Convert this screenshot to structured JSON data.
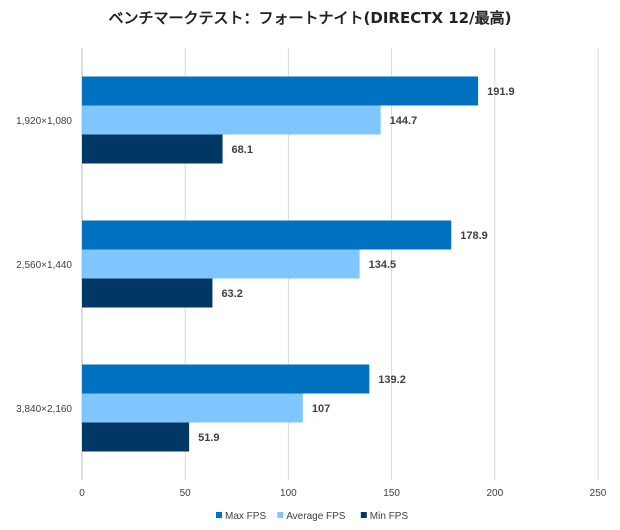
{
  "chart_data": {
    "type": "bar",
    "orientation": "horizontal",
    "title": "ベンチマークテスト：フォートナイト(DIRECTX 12/最高)",
    "categories": [
      "1,920×1,080",
      "2,560×1,440",
      "3,840×2,160"
    ],
    "series": [
      {
        "name": "Max FPS",
        "color": "#0070c0",
        "values": [
          191.9,
          178.9,
          139.2
        ],
        "labels": [
          "191.9",
          "178.9",
          "139.2"
        ]
      },
      {
        "name": "Average FPS",
        "color": "#7fc6ff",
        "values": [
          144.7,
          134.5,
          107
        ],
        "labels": [
          "144.7",
          "134.5",
          "107"
        ]
      },
      {
        "name": "Min FPS",
        "color": "#003865",
        "values": [
          68.1,
          63.2,
          51.9
        ],
        "labels": [
          "68.1",
          "63.2",
          "51.9"
        ]
      }
    ],
    "xlim": [
      0,
      250
    ],
    "xticks": [
      "0",
      "50",
      "100",
      "150",
      "200",
      "250"
    ],
    "xlabel": "",
    "ylabel": "",
    "grid": true,
    "legend": "bottom"
  }
}
